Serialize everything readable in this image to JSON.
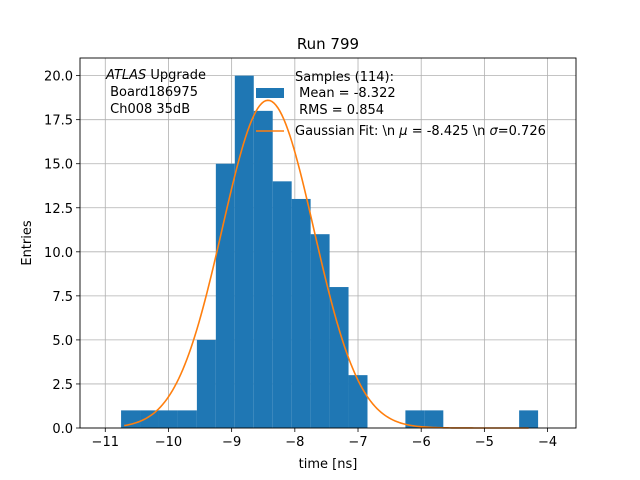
{
  "chart_data": {
    "type": "bar",
    "title": "Run 799",
    "xlabel": "time [ns]",
    "ylabel": "Entries",
    "xlim": [
      -11.4,
      -3.55
    ],
    "ylim": [
      0,
      21
    ],
    "xticks": [
      -11,
      -10,
      -9,
      -8,
      -7,
      -6,
      -5,
      -4
    ],
    "xtick_labels": [
      "−11",
      "−10",
      "−9",
      "−8",
      "−7",
      "−6",
      "−5",
      "−4"
    ],
    "yticks": [
      0,
      2.5,
      5,
      7.5,
      10,
      12.5,
      15,
      17.5,
      20
    ],
    "ytick_labels": [
      "0.0",
      "2.5",
      "5.0",
      "7.5",
      "10.0",
      "12.5",
      "15.0",
      "17.5",
      "20.0"
    ],
    "grid": true,
    "histogram": {
      "name": "Samples (114):",
      "color": "#1f77b4",
      "bins": [
        {
          "x0": -10.75,
          "x1": -10.45,
          "value": 1
        },
        {
          "x0": -10.45,
          "x1": -10.15,
          "value": 1
        },
        {
          "x0": -10.15,
          "x1": -9.85,
          "value": 1
        },
        {
          "x0": -9.85,
          "x1": -9.55,
          "value": 1
        },
        {
          "x0": -9.55,
          "x1": -9.25,
          "value": 5
        },
        {
          "x0": -9.25,
          "x1": -8.95,
          "value": 15
        },
        {
          "x0": -8.95,
          "x1": -8.65,
          "value": 20
        },
        {
          "x0": -8.65,
          "x1": -8.35,
          "value": 18
        },
        {
          "x0": -8.35,
          "x1": -8.05,
          "value": 14
        },
        {
          "x0": -8.05,
          "x1": -7.75,
          "value": 13
        },
        {
          "x0": -7.75,
          "x1": -7.45,
          "value": 11
        },
        {
          "x0": -7.45,
          "x1": -7.15,
          "value": 8
        },
        {
          "x0": -7.15,
          "x1": -6.85,
          "value": 3
        },
        {
          "x0": -6.85,
          "x1": -6.55,
          "value": 0
        },
        {
          "x0": -6.55,
          "x1": -6.25,
          "value": 0
        },
        {
          "x0": -6.25,
          "x1": -5.95,
          "value": 1
        },
        {
          "x0": -5.95,
          "x1": -5.65,
          "value": 1
        },
        {
          "x0": -5.65,
          "x1": -5.35,
          "value": 0
        },
        {
          "x0": -5.35,
          "x1": -5.05,
          "value": 0
        },
        {
          "x0": -5.05,
          "x1": -4.75,
          "value": 0
        },
        {
          "x0": -4.75,
          "x1": -4.45,
          "value": 0
        },
        {
          "x0": -4.45,
          "x1": -4.15,
          "value": 1
        }
      ]
    },
    "fit": {
      "name": "Gaussian Fit: \\n μ = -8.425 \\n σ=0.726",
      "color": "#ff7f0e",
      "mu": -8.425,
      "sigma": 0.726,
      "amplitude": 18.6,
      "x_range": [
        -10.7,
        -4.3
      ]
    },
    "legend": {
      "position": "top-right",
      "samples_line1": "Samples (114):",
      "samples_line2": " Mean = -8.322",
      "samples_line3": " RMS = 0.854",
      "fit_label_prefix": "Gaussian Fit: \\n ",
      "fit_mu_symbol": "μ",
      "fit_mu_value": " = -8.425 \\n ",
      "fit_sigma_symbol": "σ",
      "fit_sigma_value": "=0.726"
    },
    "annotation": {
      "italic_word": "ATLAS",
      "rest": " Upgrade",
      "line2": " Board186975",
      "line3": " Ch008 35dB"
    }
  }
}
